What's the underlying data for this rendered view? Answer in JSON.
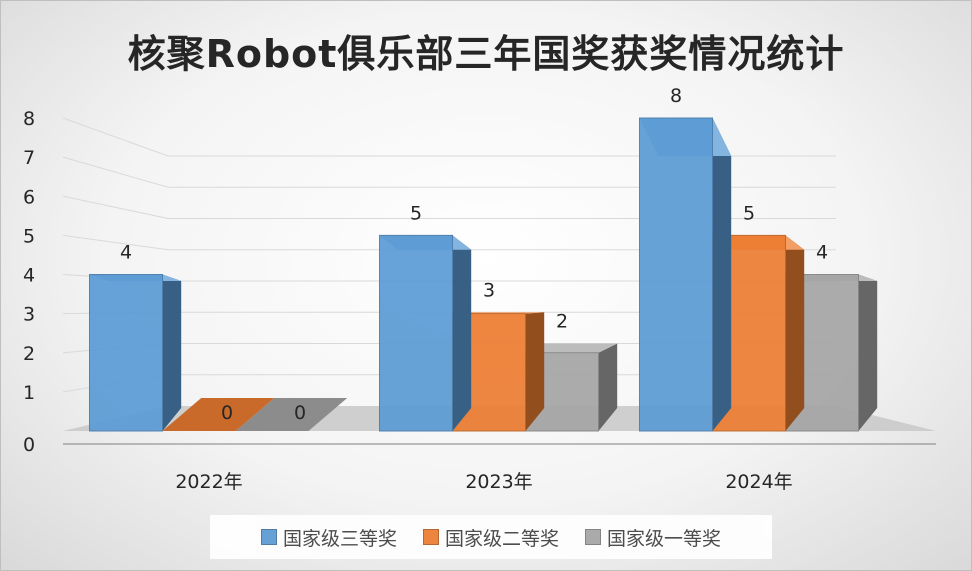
{
  "chart_data": {
    "type": "bar",
    "title": "核聚Robot俱乐部三年国奖获奖情况统计",
    "categories": [
      "2022年",
      "2023年",
      "2024年"
    ],
    "series": [
      {
        "name": "国家级三等奖",
        "values": [
          4,
          5,
          8
        ],
        "color": "#5b9bd5"
      },
      {
        "name": "国家级二等奖",
        "values": [
          0,
          3,
          5
        ],
        "color": "#ed7d31"
      },
      {
        "name": "国家级一等奖",
        "values": [
          0,
          2,
          4
        ],
        "color": "#a5a5a5"
      }
    ],
    "y_ticks": [
      "0",
      "1",
      "2",
      "3",
      "4",
      "5",
      "6",
      "7",
      "8"
    ],
    "ylim": [
      0,
      8
    ],
    "style": "3d-clustered-column",
    "grid": true,
    "data_labels": true,
    "legend_position": "bottom"
  }
}
